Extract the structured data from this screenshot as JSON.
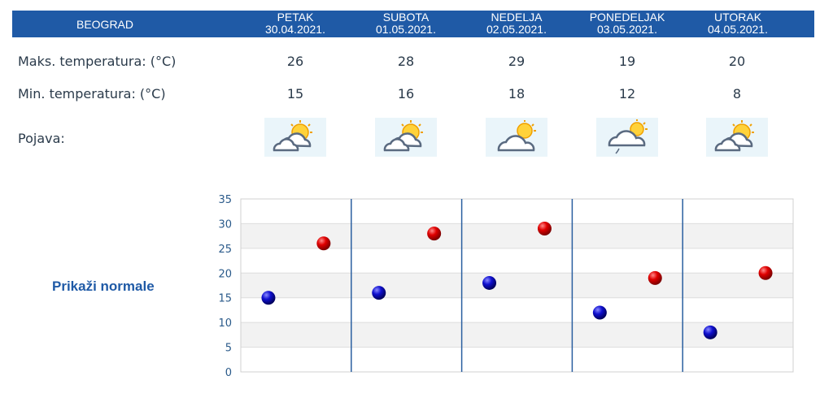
{
  "header": {
    "city": "BEOGRAD",
    "days": [
      {
        "name": "PETAK",
        "date": "30.04.2021."
      },
      {
        "name": "SUBOTA",
        "date": "01.05.2021."
      },
      {
        "name": "NEDELJA",
        "date": "02.05.2021."
      },
      {
        "name": "PONEDELJAK",
        "date": "03.05.2021."
      },
      {
        "name": "UTORAK",
        "date": "04.05.2021."
      }
    ]
  },
  "rows": {
    "max_label": "Maks. temperatura: (°C)",
    "min_label": "Min. temperatura: (°C)",
    "phenomenon_label": "Pojava:",
    "max_values": [
      "26",
      "28",
      "29",
      "19",
      "20"
    ],
    "min_values": [
      "15",
      "16",
      "18",
      "12",
      "8"
    ],
    "phenomena_icons": [
      "partly-cloudy-sun-icon",
      "partly-cloudy-sun-icon",
      "cloudy-sun-icon",
      "cloudy-sun-light-rain-icon",
      "partly-cloudy-sun-icon"
    ]
  },
  "normals_link": "Prikaži normale",
  "colors": {
    "header_bg": "#1f5aa6",
    "max_marker": "#cc0000",
    "min_marker": "#0a0aa8",
    "divider": "#2a5fa0",
    "band": "#f2f2f2"
  },
  "chart_data": {
    "type": "scatter",
    "categories": [
      "30.04.2021.",
      "01.05.2021.",
      "02.05.2021.",
      "03.05.2021.",
      "04.05.2021."
    ],
    "series": [
      {
        "values": [
          15,
          16,
          18,
          12,
          8
        ],
        "color": "#0a0aa8"
      },
      {
        "values": [
          26,
          28,
          29,
          19,
          20
        ],
        "color": "#cc0000"
      }
    ],
    "ylim": [
      0,
      35
    ],
    "yticks": [
      "0",
      "5",
      "10",
      "15",
      "20",
      "25",
      "30",
      "35"
    ],
    "grid": true
  }
}
